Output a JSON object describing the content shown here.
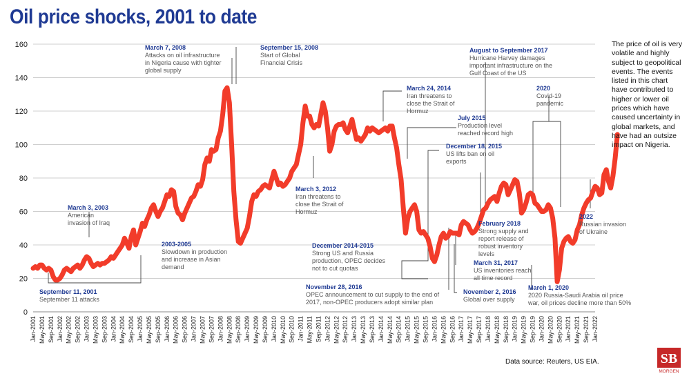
{
  "title": "Oil price shocks, 2001 to date",
  "side_note": "The price of oil is very volatile and highly subject to geopolitical events. The events listed in this chart have contributed to higher or lower oil prices which have caused uncertainty in global markets, and have had an outsize impact on Nigeria.",
  "source": "Data source: Reuters, US EIA.",
  "logo": {
    "letters": "SB",
    "sub": "MORGEN"
  },
  "colors": {
    "line": "#f23c2a",
    "title": "#1f3a93",
    "date": "#1f3a93",
    "text": "#555555",
    "grid": "#cfcfcf"
  },
  "chart_data": {
    "type": "line",
    "title": "Oil price shocks, 2001 to date",
    "xlabel": "",
    "ylabel": "",
    "ylim": [
      0,
      160
    ],
    "yticks": [
      0,
      20,
      40,
      60,
      80,
      100,
      120,
      140,
      160
    ],
    "grid": true,
    "xtick_labels": [
      "Jan-2001",
      "May-2001",
      "Sep-2001",
      "Jan-2002",
      "May-2002",
      "Sep-2002",
      "Jan-2003",
      "May-2003",
      "Sep-2003",
      "Jan-2004",
      "May-2004",
      "Sep-2004",
      "Jan-2005",
      "May-2005",
      "Sep-2005",
      "Jan-2006",
      "May-2006",
      "Sep-2006",
      "Jan-2007",
      "May-2007",
      "Sep-2007",
      "Jan-2008",
      "May-2008",
      "Sep-2008",
      "Jan-2009",
      "May-2009",
      "Sep-2009",
      "Jan-2010",
      "May-2010",
      "Sep-2010",
      "Jan-2011",
      "May-2011",
      "Sep-2011",
      "Jan-2012",
      "May-2012",
      "Sep-2012",
      "Jan-2013",
      "May-2013",
      "Sep-2013",
      "Jan-2014",
      "May-2014",
      "Sep-2014",
      "Jan-2015",
      "May-2015",
      "Sep-2015",
      "Jan-2016",
      "May-2016",
      "Sep-2016",
      "Jan-2017",
      "May-2017",
      "Sep-2017",
      "Jan-2018",
      "May-2018",
      "Sep-2018",
      "Jan-2019",
      "May-2019",
      "Sep-2019",
      "Jan-2020",
      "May-2020",
      "Sep-2020",
      "Jan-2021",
      "May-2021",
      "Sep-2021",
      "Jan-2022"
    ],
    "series": [
      {
        "values": [
          26,
          27,
          26,
          28,
          28,
          26,
          25,
          26,
          25,
          21,
          19,
          19,
          20,
          22,
          25,
          26,
          25,
          24,
          26,
          27,
          28,
          26,
          28,
          31,
          33,
          32,
          29,
          27,
          28,
          29,
          28,
          29,
          29,
          30,
          31,
          33,
          32,
          34,
          36,
          38,
          40,
          44,
          41,
          38,
          45,
          49,
          40,
          44,
          48,
          53,
          51,
          55,
          58,
          62,
          64,
          60,
          57,
          60,
          62,
          66,
          70,
          69,
          73,
          72,
          63,
          59,
          58,
          55,
          59,
          62,
          65,
          68,
          69,
          72,
          76,
          75,
          79,
          88,
          92,
          90,
          97,
          96,
          97,
          104,
          108,
          118,
          132,
          134,
          125,
          100,
          72,
          55,
          42,
          41,
          44,
          47,
          50,
          57,
          66,
          70,
          69,
          72,
          73,
          75,
          76,
          75,
          74,
          79,
          84,
          80,
          76,
          77,
          75,
          76,
          78,
          80,
          84,
          86,
          88,
          94,
          100,
          113,
          123,
          117,
          117,
          112,
          110,
          112,
          111,
          118,
          125,
          120,
          110,
          96,
          100,
          108,
          111,
          112,
          112,
          113,
          109,
          107,
          111,
          115,
          109,
          103,
          104,
          102,
          104,
          106,
          110,
          108,
          110,
          109,
          108,
          107,
          108,
          109,
          110,
          108,
          111,
          111,
          104,
          98,
          88,
          79,
          62,
          47,
          56,
          60,
          62,
          64,
          60,
          49,
          47,
          48,
          46,
          44,
          39,
          32,
          30,
          34,
          40,
          45,
          47,
          44,
          45,
          48,
          47,
          47,
          47,
          46,
          52,
          54,
          53,
          52,
          49,
          47,
          48,
          50,
          53,
          57,
          61,
          62,
          65,
          67,
          68,
          69,
          66,
          71,
          75,
          77,
          76,
          70,
          73,
          76,
          79,
          78,
          71,
          59,
          61,
          65,
          70,
          71,
          70,
          65,
          64,
          62,
          60,
          60,
          61,
          64,
          62,
          56,
          44,
          18,
          25,
          38,
          42,
          44,
          45,
          42,
          41,
          43,
          49,
          52,
          58,
          62,
          65,
          67,
          68,
          72,
          75,
          74,
          70,
          71,
          82,
          85,
          78,
          74,
          81,
          92,
          106
        ]
      }
    ]
  },
  "annotations": [
    {
      "date": "March 7, 2008",
      "text": [
        "Attacks on oil infrastructure",
        "in Nigeria cause with tighter",
        "global supply"
      ]
    },
    {
      "date": "September 15, 2008",
      "text": [
        "Start of Global",
        "Financial Crisis"
      ]
    },
    {
      "date": "August to September 2017",
      "text": [
        "Hurricane Harvey damages",
        "important infrastructure on the",
        "Gulf Coast of the US"
      ]
    },
    {
      "date": "2020",
      "text": [
        "Covid-19",
        "pandemic"
      ]
    },
    {
      "date": "March 24, 2014",
      "text": [
        "Iran threatens to",
        "close the Strait of",
        "Hormuz"
      ]
    },
    {
      "date": "July 2015",
      "text": [
        "Production level",
        "reached record high"
      ]
    },
    {
      "date": "December 18, 2015",
      "text": [
        "US lifts ban on oil",
        "exports"
      ]
    },
    {
      "date": "March 3, 2012",
      "text": [
        "Iran threatens to",
        "close the Strait of",
        "Hormuz"
      ]
    },
    {
      "date": "March 3, 2003",
      "text": [
        "American",
        "invasion of Iraq"
      ]
    },
    {
      "date": "2003-2005",
      "text": [
        "Slowdown in production",
        "and increase in Asian",
        "demand"
      ]
    },
    {
      "date": "February 2018",
      "text": [
        "Strong supply and",
        "report release of",
        "robust inventory",
        "levels"
      ]
    },
    {
      "date": "2022",
      "text": [
        "Russian invasion",
        "of Ukraine"
      ]
    },
    {
      "date": "December 2014-2015",
      "text": [
        "Strong US and Russia",
        "production, OPEC decides",
        "not to cut quotas"
      ]
    },
    {
      "date": "March 31, 2017",
      "text": [
        "US inventories reach",
        "all time record"
      ]
    },
    {
      "date": "September 11, 2001",
      "text": [
        "September 11 attacks"
      ]
    },
    {
      "date": "November 28, 2016",
      "text": [
        "OPEC announcement to cut supply to the end of",
        "2017, non-OPEC producers adopt similar plan"
      ]
    },
    {
      "date": "November 2, 2016",
      "text": [
        "Global over supply"
      ]
    },
    {
      "date": "March 1, 2020",
      "text": [
        "2020 Russia-Saudi Arabia oil price",
        "war, oil prices decline more than 50%"
      ]
    }
  ]
}
